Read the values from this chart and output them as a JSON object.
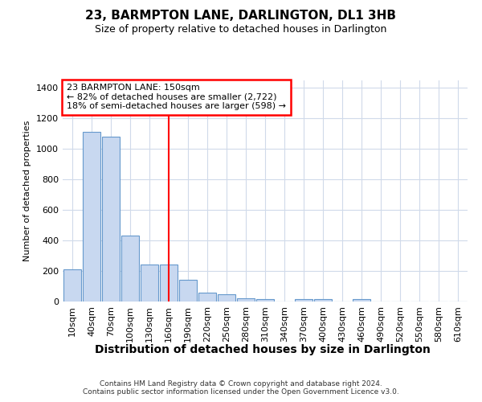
{
  "title": "23, BARMPTON LANE, DARLINGTON, DL1 3HB",
  "subtitle": "Size of property relative to detached houses in Darlington",
  "xlabel": "Distribution of detached houses by size in Darlington",
  "ylabel": "Number of detached properties",
  "categories": [
    "10sqm",
    "40sqm",
    "70sqm",
    "100sqm",
    "130sqm",
    "160sqm",
    "190sqm",
    "220sqm",
    "250sqm",
    "280sqm",
    "310sqm",
    "340sqm",
    "370sqm",
    "400sqm",
    "430sqm",
    "460sqm",
    "490sqm",
    "520sqm",
    "550sqm",
    "580sqm",
    "610sqm"
  ],
  "values": [
    210,
    1110,
    1080,
    430,
    240,
    240,
    140,
    60,
    45,
    20,
    15,
    0,
    15,
    15,
    0,
    15,
    0,
    0,
    0,
    0,
    0
  ],
  "bar_color": "#c8d8f0",
  "bar_edge_color": "#6699cc",
  "bar_edge_width": 0.8,
  "grid_color": "#d0daea",
  "background_color": "#ffffff",
  "red_line_x": 5,
  "annotation_line1": "23 BARMPTON LANE: 150sqm",
  "annotation_line2": "← 82% of detached houses are smaller (2,722)",
  "annotation_line3": "18% of semi-detached houses are larger (598) →",
  "ylim": [
    0,
    1450
  ],
  "yticks": [
    0,
    200,
    400,
    600,
    800,
    1000,
    1200,
    1400
  ],
  "footer1": "Contains HM Land Registry data © Crown copyright and database right 2024.",
  "footer2": "Contains public sector information licensed under the Open Government Licence v3.0.",
  "title_fontsize": 11,
  "subtitle_fontsize": 9,
  "xlabel_fontsize": 10,
  "ylabel_fontsize": 8,
  "tick_fontsize": 8,
  "footer_fontsize": 6.5
}
